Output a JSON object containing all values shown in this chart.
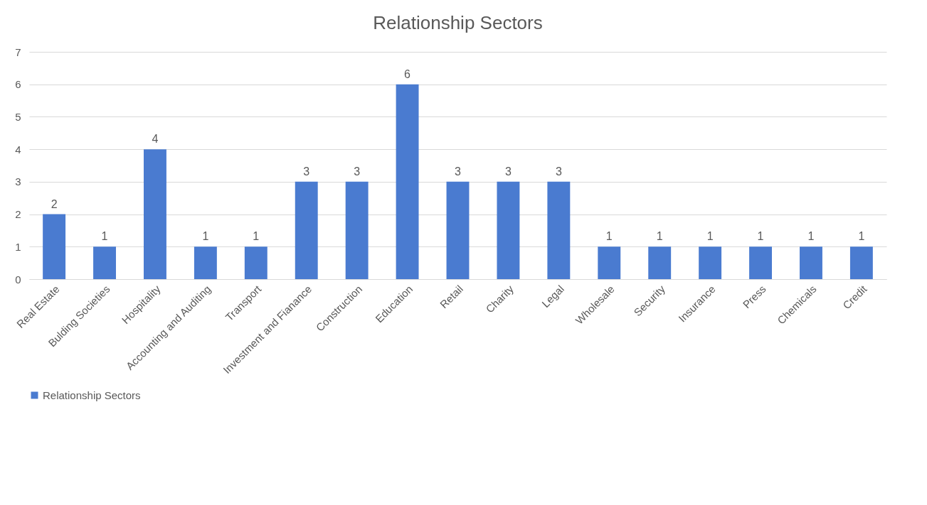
{
  "chart_data": {
    "type": "bar",
    "title": "Relationship Sectors",
    "categories": [
      "Real Estate",
      "Bulding Societies",
      "Hospitality",
      "Accounting and Auditing",
      "Transport",
      "Investment and Fianance",
      "Construction",
      "Education",
      "Retail",
      "Charity",
      "Legal",
      "Wholesale",
      "Security",
      "Insurance",
      "Press",
      "Chemicals",
      "Credit"
    ],
    "series": [
      {
        "name": "Relationship Sectors",
        "color": "#4a7bd0",
        "values": [
          2,
          1,
          4,
          1,
          1,
          3,
          3,
          6,
          3,
          3,
          3,
          1,
          1,
          1,
          1,
          1,
          1
        ]
      }
    ],
    "ylim": [
      0,
      7
    ],
    "yticks": [
      0,
      1,
      2,
      3,
      4,
      5,
      6,
      7
    ],
    "grid": "y",
    "legend": "bottom",
    "data_labels": true
  }
}
